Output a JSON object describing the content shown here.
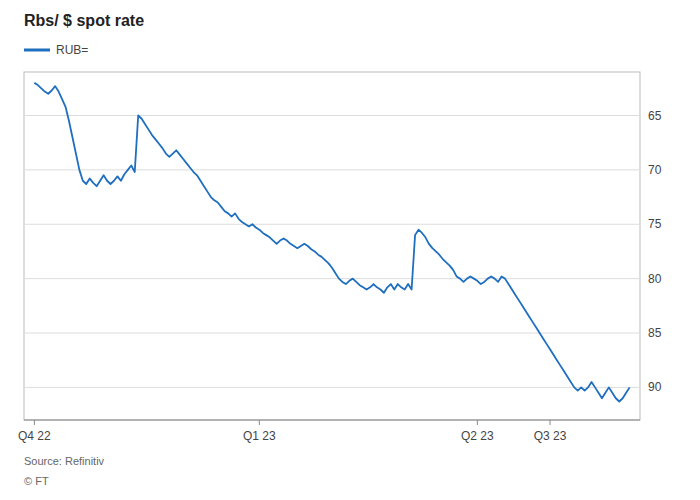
{
  "chart_data": {
    "type": "line",
    "title": "Rbs/ $ spot rate",
    "x": [
      0,
      1,
      2,
      3,
      4,
      5,
      6,
      7,
      8,
      9,
      10,
      11,
      12,
      13,
      14,
      15,
      16,
      17,
      18,
      19,
      20,
      21,
      22,
      23,
      24,
      25,
      26,
      27,
      28,
      29,
      30,
      31,
      32,
      33,
      34,
      35,
      36,
      37,
      38,
      39,
      40,
      41,
      42,
      43,
      44,
      45,
      46,
      47,
      48,
      49,
      50,
      51,
      52,
      53,
      54,
      55,
      56,
      57,
      58,
      59,
      60,
      61,
      62,
      63,
      64,
      65,
      66,
      67,
      68,
      69,
      70,
      71,
      72,
      73,
      74,
      75,
      76,
      77,
      78,
      79,
      80,
      81,
      82,
      83,
      84,
      85,
      86,
      87,
      88,
      89,
      90,
      91,
      92,
      93,
      94,
      95,
      96,
      97,
      98,
      99,
      100,
      101,
      102,
      103,
      104,
      105,
      106,
      107,
      108,
      109,
      110,
      111,
      112,
      113,
      114,
      115,
      116,
      117,
      118,
      119,
      120,
      121,
      122,
      123,
      124,
      125,
      126,
      127,
      128,
      129,
      130,
      131,
      132,
      133,
      134,
      135,
      136,
      137,
      138,
      139,
      140,
      141,
      142,
      143,
      144,
      145,
      146,
      147,
      148,
      149,
      150,
      151,
      152,
      153,
      154,
      155,
      156,
      157,
      158,
      159,
      160,
      161,
      162,
      163,
      164,
      165,
      166,
      167,
      168,
      169,
      170,
      171,
      172
    ],
    "series": [
      {
        "name": "RUB=",
        "color": "#1f6fbf",
        "values": [
          62.0,
          62.2,
          62.5,
          62.8,
          63.0,
          62.7,
          62.3,
          62.8,
          63.5,
          64.2,
          65.5,
          67.0,
          68.5,
          70.0,
          71.0,
          71.3,
          70.8,
          71.2,
          71.5,
          71.0,
          70.5,
          71.0,
          71.3,
          71.0,
          70.6,
          71.0,
          70.4,
          70.0,
          69.6,
          70.2,
          65.0,
          65.3,
          65.8,
          66.3,
          66.8,
          67.2,
          67.6,
          68.0,
          68.5,
          68.8,
          68.5,
          68.2,
          68.6,
          69.0,
          69.4,
          69.8,
          70.2,
          70.5,
          71.0,
          71.5,
          72.0,
          72.5,
          72.8,
          73.0,
          73.4,
          73.8,
          74.0,
          74.3,
          74.0,
          74.5,
          74.8,
          75.0,
          75.2,
          75.0,
          75.3,
          75.5,
          75.8,
          76.0,
          76.2,
          76.5,
          76.8,
          76.5,
          76.3,
          76.5,
          76.8,
          77.0,
          77.2,
          77.0,
          76.8,
          77.0,
          77.3,
          77.5,
          77.8,
          78.0,
          78.3,
          78.6,
          79.0,
          79.5,
          80.0,
          80.3,
          80.5,
          80.2,
          80.0,
          80.3,
          80.6,
          80.8,
          81.0,
          80.8,
          80.5,
          80.8,
          81.0,
          81.3,
          80.8,
          80.5,
          81.0,
          80.5,
          80.8,
          81.0,
          80.5,
          81.0,
          76.0,
          75.5,
          75.8,
          76.2,
          76.8,
          77.2,
          77.5,
          77.8,
          78.2,
          78.5,
          78.8,
          79.2,
          79.8,
          80.0,
          80.3,
          80.0,
          79.8,
          80.0,
          80.2,
          80.5,
          80.3,
          80.0,
          79.8,
          80.0,
          80.3,
          79.8,
          80.0,
          80.5,
          81.0,
          81.5,
          82.0,
          82.5,
          83.0,
          83.5,
          84.0,
          84.5,
          85.0,
          85.5,
          86.0,
          86.5,
          87.0,
          87.5,
          88.0,
          88.5,
          89.0,
          89.5,
          90.0,
          90.3,
          90.0,
          90.3,
          90.0,
          89.5,
          90.0,
          90.5,
          91.0,
          90.5,
          90.0,
          90.5,
          91.0,
          91.3,
          91.0,
          90.5,
          90.0
        ]
      }
    ],
    "xlim": [
      -3,
      175
    ],
    "xticks": [
      {
        "value": 0,
        "label": "Q4 22"
      },
      {
        "value": 65,
        "label": "Q1 23"
      },
      {
        "value": 128,
        "label": "Q2 23"
      },
      {
        "value": 149,
        "label": "Q3 23"
      }
    ],
    "ylim": [
      93.0,
      61.0
    ],
    "yticks": [
      65,
      70,
      75,
      80,
      85,
      90
    ],
    "grid": true,
    "legend": "top",
    "annotations": [
      "Source: Refinitiv",
      "© FT"
    ]
  }
}
